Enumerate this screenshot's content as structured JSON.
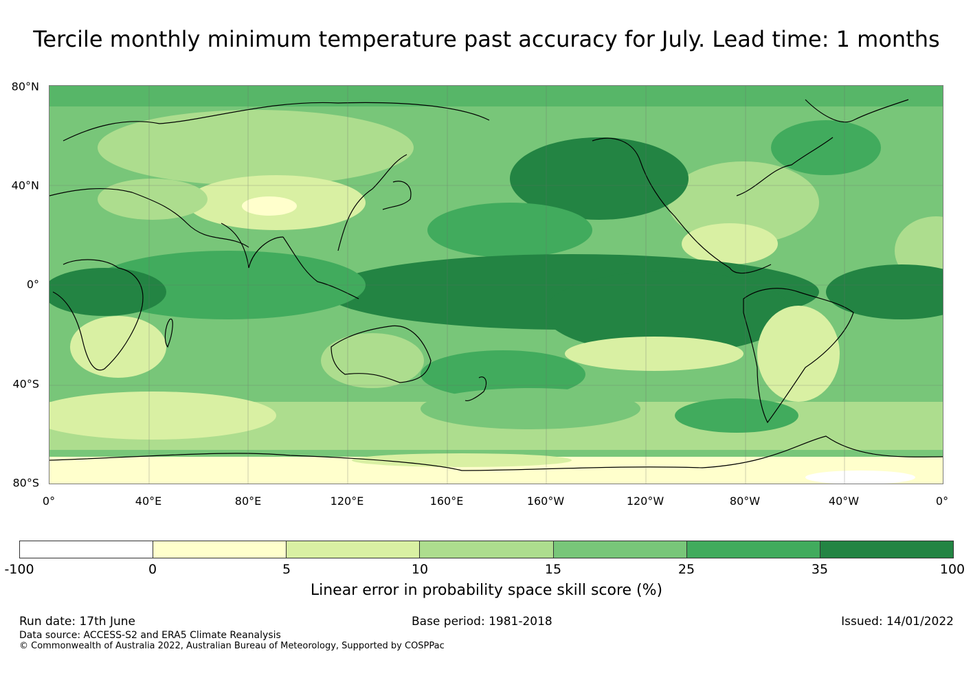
{
  "title": "Tercile monthly minimum temperature past accuracy for July. Lead time: 1 months",
  "map": {
    "lat_labels": [
      "80°N",
      "40°N",
      "0°",
      "40°S",
      "80°S"
    ],
    "lon_labels": [
      "0°",
      "40°E",
      "80°E",
      "120°E",
      "160°E",
      "160°W",
      "120°W",
      "80°W",
      "40°W",
      "0°"
    ],
    "lat_range": [
      -80,
      80
    ],
    "lon_range": [
      0,
      360
    ],
    "grid": true
  },
  "legend": {
    "label": "Linear error in probability space skill score (%)",
    "ticks": [
      "-100",
      "0",
      "5",
      "10",
      "15",
      "25",
      "35",
      "100"
    ],
    "colors": [
      "#ffffff",
      "#ffffcc",
      "#d9f0a3",
      "#addd8e",
      "#78c679",
      "#41ab5d",
      "#238443"
    ]
  },
  "footer": {
    "run_date": "Run date: 17th June",
    "base_period": "Base period: 1981-2018",
    "issued": "Issued: 14/01/2022",
    "data_source": "Data source: ACCESS-S2 and ERA5 Climate Reanalysis",
    "copyright": "© Commonwealth of Australia 2022, Australian Bureau of Meteorology, Supported by COSPPac"
  }
}
